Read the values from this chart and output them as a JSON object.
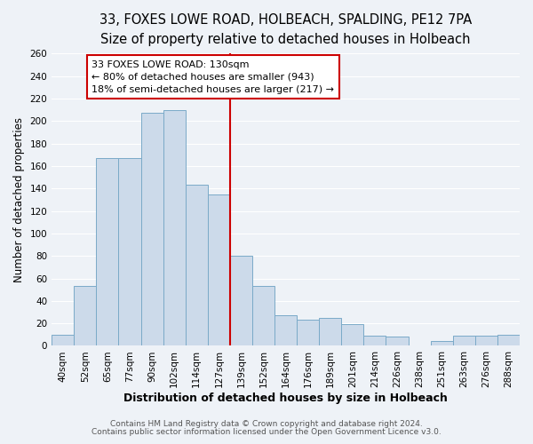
{
  "title": "33, FOXES LOWE ROAD, HOLBEACH, SPALDING, PE12 7PA",
  "subtitle": "Size of property relative to detached houses in Holbeach",
  "xlabel": "Distribution of detached houses by size in Holbeach",
  "ylabel": "Number of detached properties",
  "bar_labels": [
    "40sqm",
    "52sqm",
    "65sqm",
    "77sqm",
    "90sqm",
    "102sqm",
    "114sqm",
    "127sqm",
    "139sqm",
    "152sqm",
    "164sqm",
    "176sqm",
    "189sqm",
    "201sqm",
    "214sqm",
    "226sqm",
    "238sqm",
    "251sqm",
    "263sqm",
    "276sqm",
    "288sqm"
  ],
  "bar_heights": [
    10,
    53,
    167,
    167,
    207,
    210,
    143,
    135,
    80,
    53,
    27,
    23,
    25,
    19,
    9,
    8,
    0,
    4,
    9,
    9,
    10
  ],
  "bar_color": "#ccdaea",
  "bar_edge_color": "#7aaac8",
  "property_line_index": 7,
  "property_line_color": "#cc0000",
  "annotation_line1": "33 FOXES LOWE ROAD: 130sqm",
  "annotation_line2": "← 80% of detached houses are smaller (943)",
  "annotation_line3": "18% of semi-detached houses are larger (217) →",
  "annotation_box_color": "#ffffff",
  "annotation_box_edge_color": "#cc0000",
  "ylim": [
    0,
    260
  ],
  "yticks": [
    0,
    20,
    40,
    60,
    80,
    100,
    120,
    140,
    160,
    180,
    200,
    220,
    240,
    260
  ],
  "background_color": "#eef2f7",
  "grid_color": "#ffffff",
  "footer_line1": "Contains HM Land Registry data © Crown copyright and database right 2024.",
  "footer_line2": "Contains public sector information licensed under the Open Government Licence v3.0.",
  "title_fontsize": 10.5,
  "subtitle_fontsize": 9.5,
  "xlabel_fontsize": 9,
  "ylabel_fontsize": 8.5,
  "tick_fontsize": 7.5,
  "annotation_fontsize": 8,
  "footer_fontsize": 6.5
}
